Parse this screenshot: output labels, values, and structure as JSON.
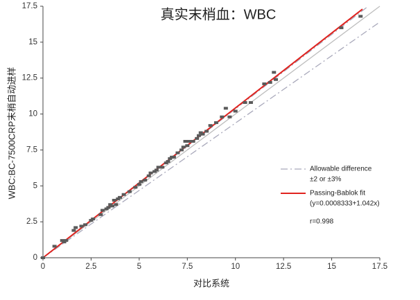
{
  "chart_data": {
    "type": "scatter",
    "title": "真实末梢血：WBC",
    "x_label": "对比系统",
    "y_label": "WBC:BC-7500CRP末梢自动进样",
    "xlim": [
      0,
      17.5
    ],
    "ylim": [
      0,
      17.5
    ],
    "xticks": [
      0,
      2.5,
      5,
      7.5,
      10,
      12.5,
      15,
      17.5
    ],
    "yticks": [
      0,
      2.5,
      5,
      7.5,
      10,
      12.5,
      15,
      17.5
    ],
    "color": "#5a5a5a",
    "x": [
      0,
      0.6,
      1,
      1.1,
      1.2,
      1.6,
      1.7,
      2,
      2.2,
      2.5,
      2.6,
      3,
      3.1,
      3.3,
      3.4,
      3.5,
      3.6,
      3.7,
      3.8,
      3.9,
      4,
      4.2,
      4.5,
      4.8,
      5,
      5.1,
      5.3,
      5.5,
      5.6,
      5.8,
      5.9,
      6,
      6.2,
      6.4,
      6.5,
      6.6,
      6.7,
      6.8,
      7,
      7.2,
      7.3,
      7.4,
      7.5,
      7.6,
      7.8,
      8,
      8.1,
      8.2,
      8.3,
      8.5,
      8.7,
      9,
      9.3,
      9.5,
      9.7,
      10,
      10.5,
      10.8,
      11.5,
      11.8,
      12,
      12.1,
      15.5,
      16.5
    ],
    "values": [
      0,
      0.8,
      1.2,
      1.1,
      1.2,
      1.9,
      2.1,
      2.2,
      2.3,
      2.6,
      2.7,
      3,
      3.3,
      3.4,
      3.5,
      3.7,
      3.6,
      4,
      3.7,
      4.1,
      4.2,
      4.4,
      4.6,
      4.9,
      5.1,
      5.3,
      5.4,
      5.7,
      5.9,
      6,
      6.1,
      6.3,
      6.3,
      6.6,
      6.7,
      6.9,
      7,
      7,
      7.3,
      7.5,
      7.7,
      8.1,
      7.8,
      8.1,
      8.1,
      8.3,
      8.5,
      8.7,
      8.6,
      8.8,
      9.2,
      9.4,
      9.8,
      10.4,
      9.8,
      10.2,
      10.8,
      10.8,
      12.1,
      12.2,
      12.9,
      12.4,
      16,
      16.8
    ],
    "lines": [
      {
        "x": [
          0,
          17.5
        ],
        "y": [
          0,
          17.5
        ],
        "color": "#bdbdbd",
        "style": "solid"
      },
      {
        "name": "Allowable difference",
        "note": "±2 or ±3%",
        "x": [
          0,
          16.9
        ],
        "y": [
          0,
          17.5
        ],
        "color": "#a9a9bb",
        "style": "dashdot"
      },
      {
        "x": [
          0,
          17.5
        ],
        "y": [
          0,
          16.4
        ],
        "color": "#a9a9bb",
        "style": "dashdot"
      },
      {
        "name": "Passing-Bablok fit",
        "note": "(y=0.0008333+1.042x)",
        "x": [
          0,
          16.6
        ],
        "y": [
          0.0008333,
          17.3
        ],
        "color": "#e0231f",
        "style": "solid"
      }
    ],
    "annotation": "r=0.998"
  }
}
